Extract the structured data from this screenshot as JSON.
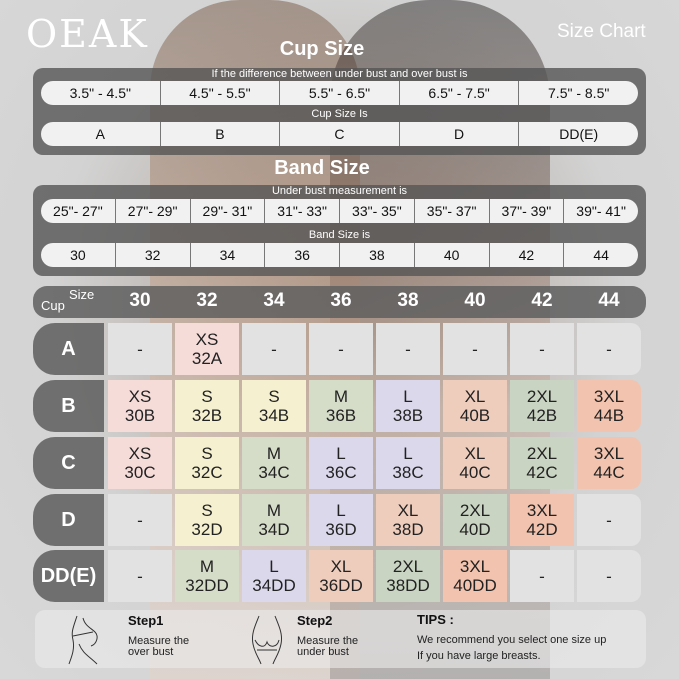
{
  "brand": {
    "logo": "OEAK",
    "heading": "Size Chart"
  },
  "cup_size": {
    "title": "Cup Size",
    "difference_caption": "If the  difference between under bust and over bust is",
    "differences": [
      "3.5\" - 4.5\"",
      "4.5\" - 5.5\"",
      "5.5\" - 6.5\"",
      "6.5\" - 7.5\"",
      "7.5\" - 8.5\""
    ],
    "cup_caption": "Cup Size Is",
    "cups": [
      "A",
      "B",
      "C",
      "D",
      "DD(E)"
    ]
  },
  "band_size": {
    "title": "Band Size",
    "under_caption": "Under bust measurement is",
    "measurements": [
      "25\"- 27\"",
      "27\"- 29\"",
      "29\"- 31\"",
      "31\"- 33\"",
      "33\"- 35\"",
      "35\"- 37\"",
      "37\"- 39\"",
      "39\"- 41\""
    ],
    "band_caption": "Band Size is",
    "bands": [
      "30",
      "32",
      "34",
      "36",
      "38",
      "40",
      "42",
      "44"
    ]
  },
  "grid": {
    "corner_cup": "Cup",
    "corner_size": "Size",
    "columns": [
      "30",
      "32",
      "34",
      "36",
      "38",
      "40",
      "42",
      "44"
    ],
    "rows": [
      {
        "cup": "A",
        "cells": [
          [
            "-",
            ""
          ],
          [
            "XS",
            "32A"
          ],
          [
            "-",
            ""
          ],
          [
            "-",
            ""
          ],
          [
            "-",
            ""
          ],
          [
            "-",
            ""
          ],
          [
            "-",
            ""
          ],
          [
            "-",
            ""
          ]
        ]
      },
      {
        "cup": "B",
        "cells": [
          [
            "XS",
            "30B"
          ],
          [
            "S",
            "32B"
          ],
          [
            "S",
            "34B"
          ],
          [
            "M",
            "36B"
          ],
          [
            "L",
            "38B"
          ],
          [
            "XL",
            "40B"
          ],
          [
            "2XL",
            "42B"
          ],
          [
            "3XL",
            "44B"
          ]
        ]
      },
      {
        "cup": "C",
        "cells": [
          [
            "XS",
            "30C"
          ],
          [
            "S",
            "32C"
          ],
          [
            "M",
            "34C"
          ],
          [
            "L",
            "36C"
          ],
          [
            "L",
            "38C"
          ],
          [
            "XL",
            "40C"
          ],
          [
            "2XL",
            "42C"
          ],
          [
            "3XL",
            "44C"
          ]
        ]
      },
      {
        "cup": "D",
        "cells": [
          [
            "-",
            ""
          ],
          [
            "S",
            "32D"
          ],
          [
            "M",
            "34D"
          ],
          [
            "L",
            "36D"
          ],
          [
            "XL",
            "38D"
          ],
          [
            "2XL",
            "40D"
          ],
          [
            "3XL",
            "42D"
          ],
          [
            "-",
            ""
          ]
        ]
      },
      {
        "cup": "DD(E)",
        "cells": [
          [
            "-",
            ""
          ],
          [
            "M",
            "32DD"
          ],
          [
            "L",
            "34DD"
          ],
          [
            "XL",
            "36DD"
          ],
          [
            "2XL",
            "38DD"
          ],
          [
            "3XL",
            "40DD"
          ],
          [
            "-",
            ""
          ],
          [
            "-",
            ""
          ]
        ]
      }
    ],
    "size_colors": {
      "-": "#e2e2e2",
      "XS": "#f6dcd9",
      "S": "#f5f0cf",
      "M": "#d5ddc9",
      "L": "#dcd8ec",
      "XL": "#eecdbd",
      "2XL": "#c9d4c2",
      "3XL": "#f2c3ae"
    }
  },
  "steps": [
    {
      "title": "Step1",
      "text1": "Measure the",
      "text2": "over bust",
      "icon": "over-bust-measure-icon"
    },
    {
      "title": "Step2",
      "text1": "Measure the",
      "text2": "under bust",
      "icon": "under-bust-measure-icon"
    }
  ],
  "tips": {
    "title": "TIPS :",
    "line1": "We recommend you select one size up",
    "line2": "If you have large breasts."
  }
}
